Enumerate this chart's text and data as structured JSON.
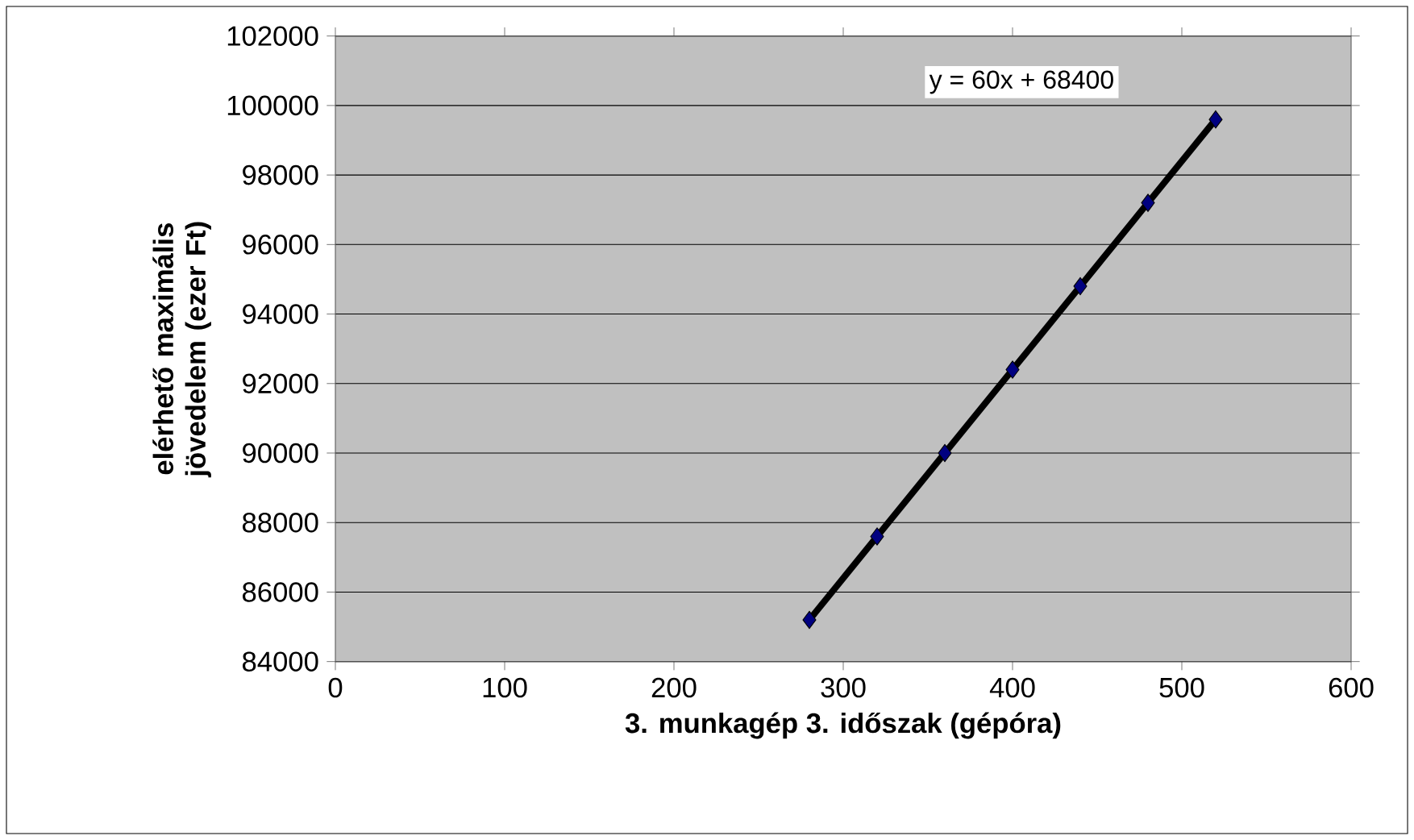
{
  "chart_data": {
    "type": "scatter",
    "xlabel": "3. munkagép 3. időszak (gépóra)",
    "ylabel": "elérhető maximális jövedelem (ezer Ft)",
    "series": [
      {
        "color": "#000080",
        "x": [
          280,
          320,
          360,
          400,
          440,
          480,
          520
        ],
        "values": [
          85200,
          87600,
          90000,
          92400,
          94800,
          97200,
          99600
        ],
        "marker": "diamond"
      },
      {
        "type": "line",
        "color": "#000000",
        "x": [
          280,
          520
        ],
        "values": [
          85200,
          99600
        ],
        "line_style": "solid"
      }
    ],
    "annotations": [
      "y = 60x + 68400"
    ],
    "xlim": [
      0,
      600
    ],
    "xticks": [
      0,
      100,
      200,
      300,
      400,
      500,
      600
    ],
    "ylim": [
      84000,
      102000
    ],
    "yticks": [
      84000,
      86000,
      88000,
      90000,
      92000,
      94000,
      96000,
      98000,
      100000,
      102000
    ],
    "grid": "y"
  }
}
